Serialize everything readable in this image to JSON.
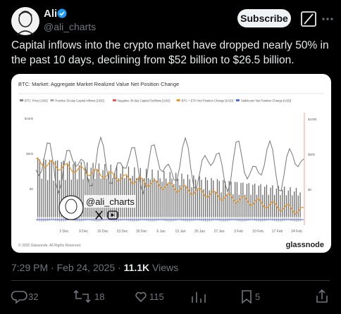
{
  "author": {
    "name": "Ali",
    "handle": "@ali_charts"
  },
  "subscribe": "Subscribe",
  "text": "Capital inflows into the crypto market have dropped nearly 50% in the past 10 days, declining from $52 billion to $26.5 billion.",
  "image": {
    "title": "BTC: Market: Aggregate Market Realized Value Net Position Change",
    "legend": [
      "BTC: Price [USD]",
      "Positive 30-day Capital Inflows [USD]",
      "Negative 30-day Capital Outflows [USD]",
      "BTC + ETH Net Position Change [USD]",
      "Stablecoin Net Position Change [USD]"
    ],
    "x_ticks": [
      "2 Dec",
      "9 Dec",
      "16 Dec",
      "23 Dec",
      "30 Dec",
      "6 Jan",
      "13 Jan",
      "20 Jan",
      "27 Jan",
      "3 Feb",
      "10 Feb",
      "17 Feb",
      "24 Feb"
    ],
    "y_left_ticks": [
      "$100k",
      "$50k",
      "$0"
    ],
    "y_right_ticks": [
      "$100b",
      "$50b",
      "$0"
    ],
    "watermark": "@ali_charts",
    "copyright": "© 2025 Glassnode. All Rights Reserved.",
    "brand": "glassnode"
  },
  "meta": {
    "time": "7:29 PM",
    "separator": "·",
    "date": "Feb 24, 2025",
    "views": "11.1K",
    "views_label": "Views"
  },
  "actions": {
    "replies": "32",
    "reposts": "18",
    "likes": "115",
    "bookmarks": "5"
  }
}
